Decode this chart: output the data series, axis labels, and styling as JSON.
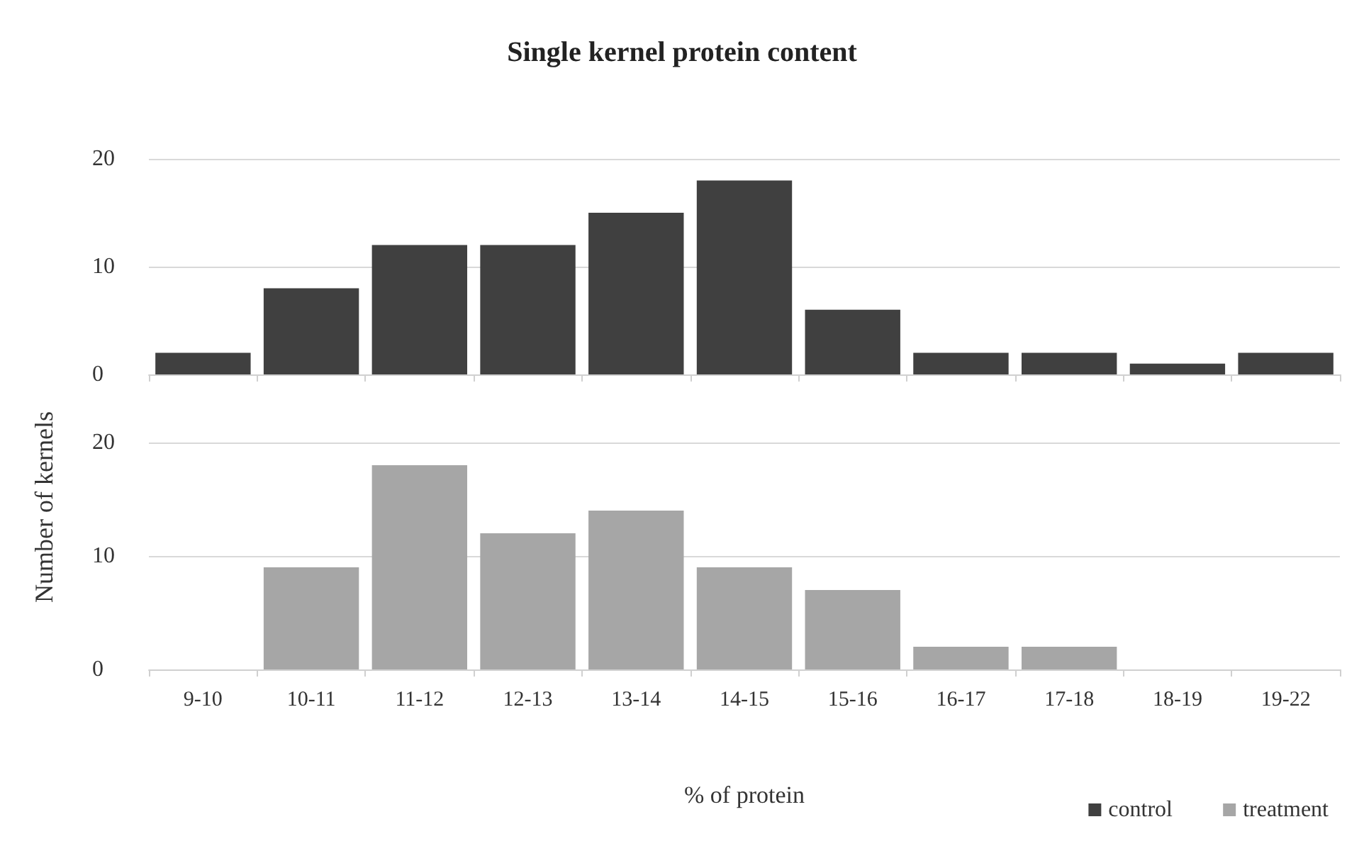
{
  "chart_data": [
    {
      "type": "bar",
      "title": "Single kernel protein content",
      "ylabel": "Number of kernels",
      "categories": [
        null,
        null,
        null,
        null,
        null,
        null,
        null,
        null,
        null,
        null,
        null
      ],
      "series": [
        {
          "name": "control",
          "color": "#404040",
          "values": [
            2,
            8,
            12,
            12,
            15,
            18,
            6,
            2,
            2,
            1,
            2
          ]
        }
      ],
      "ylim": [
        0,
        20
      ],
      "yticks": [
        0,
        10,
        20
      ],
      "grid": "y",
      "legend": "bottom right",
      "tick_labels": "y"
    },
    {
      "type": "bar",
      "xlabel": "% of protein",
      "categories": [
        "9-10",
        "10-11",
        "11-12",
        "12-13",
        "13-14",
        "14-15",
        "15-16",
        "16-17",
        "17-18",
        "18-19",
        "19-22"
      ],
      "series": [
        {
          "name": "treatment",
          "color": "#a6a6a6",
          "values": [
            0,
            9,
            18,
            12,
            14,
            9,
            7,
            2,
            2,
            0,
            0
          ]
        }
      ],
      "ylim": [
        0,
        20
      ],
      "yticks": [
        0,
        10,
        20
      ],
      "grid": "y",
      "legend": "bottom right"
    }
  ]
}
